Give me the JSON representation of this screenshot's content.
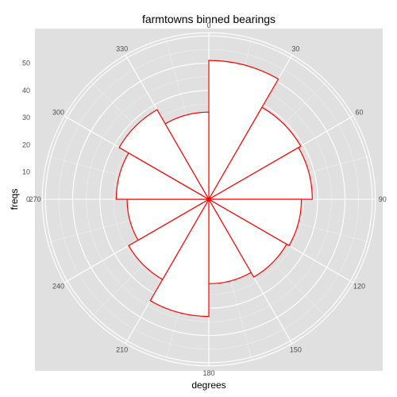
{
  "chart_data": {
    "type": "bar",
    "coord": "polar",
    "title": "farmtowns binned bearings",
    "xlabel": "degrees",
    "ylabel": "freqs",
    "bin_width_degrees": 30,
    "categories": [
      0,
      30,
      60,
      90,
      120,
      150,
      180,
      210,
      240,
      270,
      300,
      330
    ],
    "values": [
      51,
      39,
      38,
      34,
      33,
      31,
      43,
      34,
      30,
      34,
      38,
      32
    ],
    "ylim": [
      0,
      60
    ],
    "y_ticks": [
      0,
      10,
      20,
      30,
      40,
      50
    ],
    "x_ticks": [
      0,
      30,
      60,
      90,
      120,
      150,
      180,
      210,
      240,
      270,
      300,
      330
    ],
    "grid": true,
    "colors": {
      "panel_background": "#e0e0e0",
      "grid": "#ffffff",
      "bar_fill": "#ffffff",
      "bar_outline": "#ff0000"
    }
  }
}
